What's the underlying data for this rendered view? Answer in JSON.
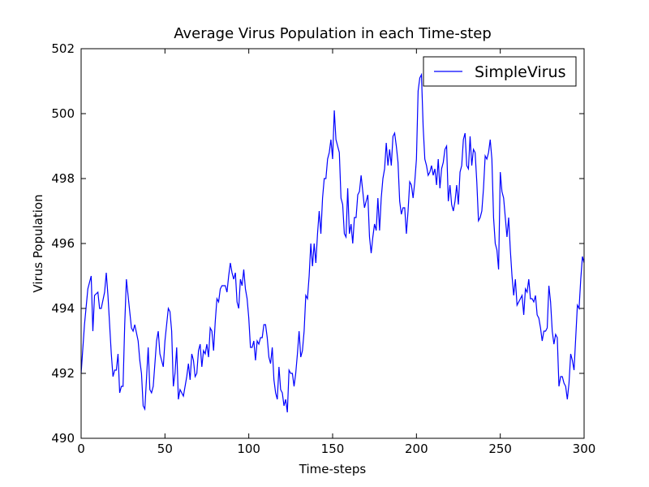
{
  "chart_data": {
    "type": "line",
    "title": "Average Virus Population in each Time-step",
    "x_label": "Time-steps",
    "y_label": "Virus Population",
    "xlim": [
      0,
      300
    ],
    "xticks": [
      0,
      50,
      100,
      150,
      200,
      250,
      300
    ],
    "ylim": [
      490,
      502
    ],
    "yticks": [
      490,
      492,
      494,
      496,
      498,
      500,
      502
    ],
    "legend": "upper right",
    "x": [
      0,
      2,
      4,
      6,
      7,
      8,
      10,
      11,
      12,
      14,
      15,
      16,
      18,
      19,
      20,
      21,
      22,
      23,
      24,
      25,
      26,
      27,
      28,
      30,
      31,
      32,
      34,
      35,
      36,
      37,
      38,
      40,
      41,
      42,
      43,
      45,
      46,
      47,
      49,
      50,
      52,
      53,
      54,
      55,
      56,
      57,
      58,
      59,
      61,
      63,
      64,
      65,
      66,
      67,
      68,
      69,
      70,
      71,
      72,
      73,
      74,
      75,
      76,
      77,
      78,
      79,
      80,
      81,
      82,
      83,
      84,
      85,
      86,
      87,
      88,
      89,
      90,
      91,
      92,
      93,
      94,
      95,
      96,
      97,
      98,
      99,
      100,
      101,
      102,
      103,
      104,
      105,
      106,
      107,
      108,
      109,
      110,
      111,
      112,
      113,
      114,
      115,
      116,
      117,
      118,
      119,
      120,
      121,
      122,
      123,
      124,
      125,
      126,
      127,
      128,
      129,
      130,
      131,
      132,
      133,
      134,
      135,
      136,
      137,
      138,
      139,
      140,
      141,
      142,
      143,
      144,
      145,
      146,
      147,
      148,
      149,
      150,
      151,
      152,
      153,
      154,
      155,
      156,
      157,
      158,
      159,
      160,
      161,
      162,
      163,
      164,
      165,
      166,
      167,
      168,
      169,
      170,
      171,
      172,
      173,
      174,
      175,
      176,
      177,
      178,
      179,
      180,
      181,
      182,
      183,
      184,
      185,
      186,
      187,
      188,
      189,
      190,
      191,
      192,
      193,
      194,
      195,
      196,
      197,
      198,
      199,
      200,
      201,
      202,
      203,
      204,
      205,
      206,
      207,
      208,
      209,
      210,
      211,
      212,
      213,
      214,
      215,
      216,
      217,
      218,
      219,
      220,
      221,
      222,
      223,
      224,
      225,
      226,
      227,
      228,
      229,
      230,
      231,
      232,
      233,
      234,
      235,
      236,
      237,
      238,
      239,
      240,
      241,
      242,
      243,
      244,
      245,
      246,
      247,
      248,
      249,
      250,
      251,
      252,
      253,
      254,
      255,
      256,
      257,
      258,
      259,
      260,
      261,
      262,
      263,
      264,
      265,
      266,
      267,
      268,
      269,
      270,
      271,
      272,
      273,
      274,
      275,
      276,
      277,
      278,
      279,
      280,
      281,
      282,
      283,
      284,
      285,
      286,
      287,
      288,
      289,
      290,
      291,
      292,
      293,
      294,
      295,
      296,
      297,
      298,
      299,
      300
    ],
    "series": [
      {
        "name": "SimpleVirus",
        "color": "#0000ff",
        "values": [
          492.0,
          493.5,
          494.6,
          495.0,
          493.3,
          494.4,
          494.5,
          494.0,
          494.0,
          494.5,
          495.1,
          494.4,
          492.6,
          491.9,
          492.1,
          492.1,
          492.6,
          491.4,
          491.6,
          491.6,
          493.5,
          494.9,
          494.4,
          493.4,
          493.3,
          493.5,
          493.0,
          492.4,
          492.0,
          491.0,
          490.9,
          492.8,
          491.5,
          491.4,
          491.6,
          493.0,
          493.3,
          492.6,
          492.2,
          493.0,
          494.0,
          493.9,
          493.3,
          491.6,
          492.0,
          492.8,
          491.2,
          491.5,
          491.3,
          491.9,
          492.3,
          491.8,
          492.6,
          492.4,
          491.9,
          492.0,
          492.7,
          492.9,
          492.2,
          492.7,
          492.6,
          492.9,
          492.5,
          493.4,
          493.3,
          492.7,
          493.6,
          494.3,
          494.2,
          494.6,
          494.7,
          494.7,
          494.7,
          494.5,
          495.0,
          495.4,
          495.1,
          494.9,
          495.1,
          494.2,
          494.0,
          494.9,
          494.7,
          495.2,
          494.6,
          494.3,
          493.7,
          492.8,
          492.8,
          493.0,
          492.4,
          493.0,
          492.9,
          493.1,
          493.1,
          493.5,
          493.5,
          493.1,
          492.5,
          492.3,
          492.8,
          491.8,
          491.4,
          491.2,
          492.2,
          491.5,
          491.4,
          491.0,
          491.2,
          490.8,
          492.1,
          492.0,
          492.0,
          491.6,
          492.0,
          492.6,
          493.3,
          492.5,
          492.7,
          493.3,
          494.4,
          494.3,
          495.0,
          496.0,
          495.3,
          496.0,
          495.4,
          496.3,
          497.0,
          496.3,
          497.4,
          498.0,
          498.0,
          498.6,
          498.8,
          499.2,
          498.6,
          500.1,
          499.2,
          499.0,
          498.8,
          497.4,
          497.2,
          496.3,
          496.2,
          497.7,
          496.3,
          496.6,
          496.0,
          496.8,
          496.8,
          497.5,
          497.6,
          498.1,
          497.6,
          497.1,
          497.3,
          497.5,
          496.2,
          495.7,
          496.2,
          496.6,
          496.4,
          497.4,
          496.4,
          497.4,
          498.0,
          498.3,
          499.1,
          498.4,
          498.9,
          498.4,
          499.3,
          499.4,
          499.0,
          498.5,
          497.3,
          496.9,
          497.1,
          497.1,
          496.3,
          497.0,
          497.9,
          497.8,
          497.4,
          497.9,
          498.6,
          500.7,
          501.1,
          501.2,
          499.6,
          498.6,
          498.4,
          498.1,
          498.2,
          498.4,
          498.1,
          498.3,
          497.8,
          498.6,
          497.7,
          498.3,
          498.5,
          498.9,
          499.0,
          497.3,
          497.8,
          497.2,
          497.0,
          497.3,
          497.8,
          497.2,
          498.2,
          498.4,
          499.2,
          499.4,
          498.4,
          498.3,
          499.3,
          498.4,
          498.9,
          498.8,
          497.9,
          496.7,
          496.8,
          497.0,
          497.7,
          498.7,
          498.6,
          498.8,
          499.2,
          498.6,
          496.8,
          496.0,
          495.8,
          495.2,
          498.2,
          497.6,
          497.4,
          496.8,
          496.2,
          496.8,
          495.8,
          495.0,
          494.4,
          494.9,
          494.1,
          494.2,
          494.3,
          494.4,
          493.8,
          494.6,
          494.5,
          494.9,
          494.3,
          494.3,
          494.2,
          494.4,
          493.8,
          493.7,
          493.4,
          493.0,
          493.3,
          493.3,
          493.4,
          494.7,
          494.2,
          493.3,
          492.9,
          493.2,
          493.1,
          491.6,
          491.9,
          491.9,
          491.7,
          491.6,
          491.2,
          491.7,
          492.6,
          492.4,
          492.1,
          493.1,
          494.1,
          494.0,
          494.9,
          495.6,
          495.4
        ]
      }
    ]
  }
}
